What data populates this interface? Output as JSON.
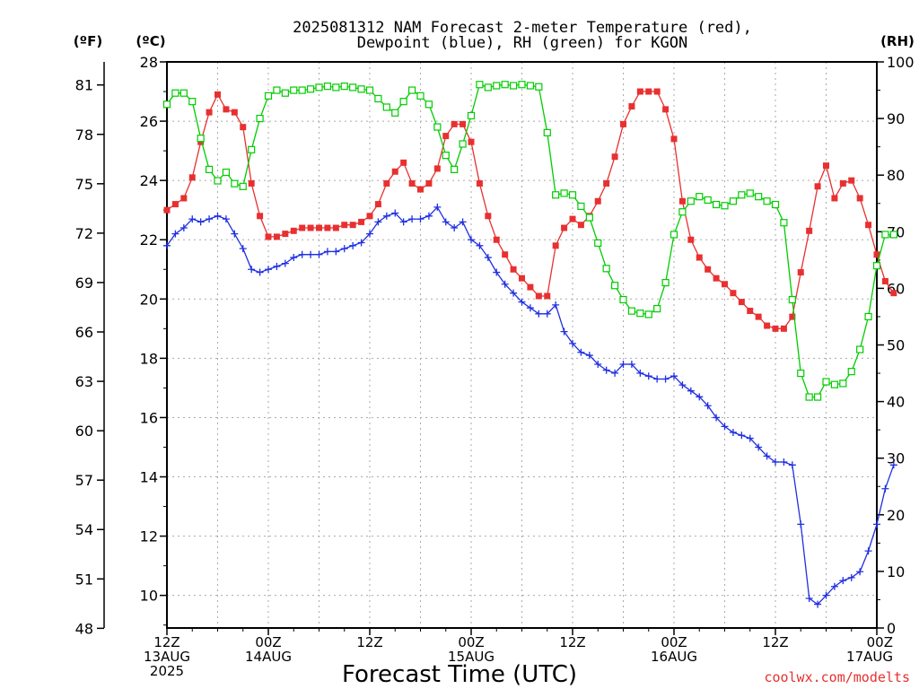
{
  "chart_data": {
    "type": "line",
    "title_line1": "2025081312 NAM Forecast 2-meter Temperature (red),",
    "title_line2": "Dewpoint (blue), RH (green) for KGON",
    "xlabel": "Forecast Time (UTC)",
    "credit": "coolwx.com/modelts",
    "left_axis_unit_f": "(ºF)",
    "left_axis_unit_c": "(ºC)",
    "right_axis_unit": "(RH)",
    "celsius_axis": {
      "ylim": [
        8.9,
        28
      ],
      "ticks": [
        10,
        12,
        14,
        16,
        18,
        20,
        22,
        24,
        26,
        28
      ]
    },
    "fahrenheit_ticks": [
      48,
      51,
      54,
      57,
      60,
      63,
      66,
      69,
      72,
      75,
      78,
      81
    ],
    "rh_axis": {
      "ylim": [
        0,
        100
      ],
      "ticks": [
        0,
        10,
        20,
        30,
        40,
        50,
        60,
        70,
        80,
        90,
        100
      ]
    },
    "x_axis": {
      "range_hours": [
        0,
        84
      ],
      "tick_labels": [
        {
          "hour": 0,
          "lines": [
            "12Z",
            "13AUG",
            "2025"
          ]
        },
        {
          "hour": 12,
          "lines": [
            "00Z",
            "14AUG"
          ]
        },
        {
          "hour": 24,
          "lines": [
            "12Z"
          ]
        },
        {
          "hour": 36,
          "lines": [
            "00Z",
            "15AUG"
          ]
        },
        {
          "hour": 48,
          "lines": [
            "12Z"
          ]
        },
        {
          "hour": 60,
          "lines": [
            "00Z",
            "16AUG"
          ]
        },
        {
          "hour": 72,
          "lines": [
            "12Z"
          ]
        },
        {
          "hour": 84,
          "lines": [
            "00Z",
            "17AUG"
          ]
        }
      ]
    },
    "grid": true,
    "colors": {
      "temperature": "#e83030",
      "dewpoint": "#2030e0",
      "rh": "#00cc00"
    },
    "series": [
      {
        "key": "temperature",
        "axis": "celsius",
        "values": [
          23.0,
          23.2,
          23.4,
          24.1,
          25.3,
          26.3,
          26.9,
          26.4,
          26.3,
          25.8,
          23.9,
          22.8,
          22.1,
          22.1,
          22.2,
          22.3,
          22.4,
          22.4,
          22.4,
          22.4,
          22.4,
          22.5,
          22.5,
          22.6,
          22.8,
          23.2,
          23.9,
          24.3,
          24.6,
          23.9,
          23.7,
          23.9,
          24.4,
          25.5,
          25.9,
          25.9,
          25.3,
          23.9,
          22.8,
          22.0,
          21.5,
          21.0,
          20.7,
          20.4,
          20.1,
          20.1,
          21.8,
          22.4,
          22.7,
          22.5,
          22.8,
          23.3,
          23.9,
          24.8,
          25.9,
          26.5,
          27.0,
          27.0,
          27.0,
          26.4,
          25.4,
          23.3,
          22.0,
          21.4,
          21.0,
          20.7,
          20.5,
          20.2,
          19.9,
          19.6,
          19.4,
          19.1,
          19.0,
          19.0,
          19.4,
          20.9,
          22.3,
          23.8,
          24.5,
          23.4,
          23.9,
          24.0,
          23.4,
          22.5,
          21.5,
          20.6,
          20.2
        ]
      },
      {
        "key": "dewpoint",
        "axis": "celsius",
        "values": [
          21.8,
          22.2,
          22.4,
          22.7,
          22.6,
          22.7,
          22.8,
          22.7,
          22.2,
          21.7,
          21.0,
          20.9,
          21.0,
          21.1,
          21.2,
          21.4,
          21.5,
          21.5,
          21.5,
          21.6,
          21.6,
          21.7,
          21.8,
          21.9,
          22.2,
          22.6,
          22.8,
          22.9,
          22.6,
          22.7,
          22.7,
          22.8,
          23.1,
          22.6,
          22.4,
          22.6,
          22.0,
          21.8,
          21.4,
          20.9,
          20.5,
          20.2,
          19.9,
          19.7,
          19.5,
          19.5,
          19.8,
          18.9,
          18.5,
          18.2,
          18.1,
          17.8,
          17.6,
          17.5,
          17.8,
          17.8,
          17.5,
          17.4,
          17.3,
          17.3,
          17.4,
          17.1,
          16.9,
          16.7,
          16.4,
          16.0,
          15.7,
          15.5,
          15.4,
          15.3,
          15.0,
          14.7,
          14.5,
          14.5,
          14.4,
          12.4,
          9.9,
          9.7,
          10.0,
          10.3,
          10.5,
          10.6,
          10.8,
          11.5,
          12.4,
          13.6,
          14.4
        ]
      },
      {
        "key": "rh",
        "axis": "rh",
        "values": [
          92.5,
          94.5,
          94.5,
          93,
          86.5,
          81,
          79,
          80.5,
          78.5,
          78,
          84.5,
          90,
          94,
          95,
          94.5,
          95,
          95,
          95.2,
          95.5,
          95.7,
          95.5,
          95.7,
          95.5,
          95.2,
          95,
          93.5,
          92,
          91,
          93,
          95,
          94,
          92.5,
          88.5,
          83.5,
          81,
          85.5,
          90.5,
          96,
          95.5,
          95.8,
          96,
          95.8,
          96,
          95.8,
          95.6,
          87.5,
          76.5,
          76.8,
          76.5,
          74.5,
          72.5,
          68,
          63.5,
          60.5,
          58,
          56,
          55.6,
          55.4,
          56.4,
          61,
          69.5,
          73.5,
          75.4,
          76.2,
          75.6,
          74.8,
          74.6,
          75.4,
          76.5,
          76.8,
          76.2,
          75.4,
          74.8,
          71.6,
          58,
          45,
          40.8,
          40.8,
          43.5,
          43,
          43.2,
          45.3,
          49.2,
          55,
          64,
          69.5,
          69.5
        ]
      }
    ]
  }
}
